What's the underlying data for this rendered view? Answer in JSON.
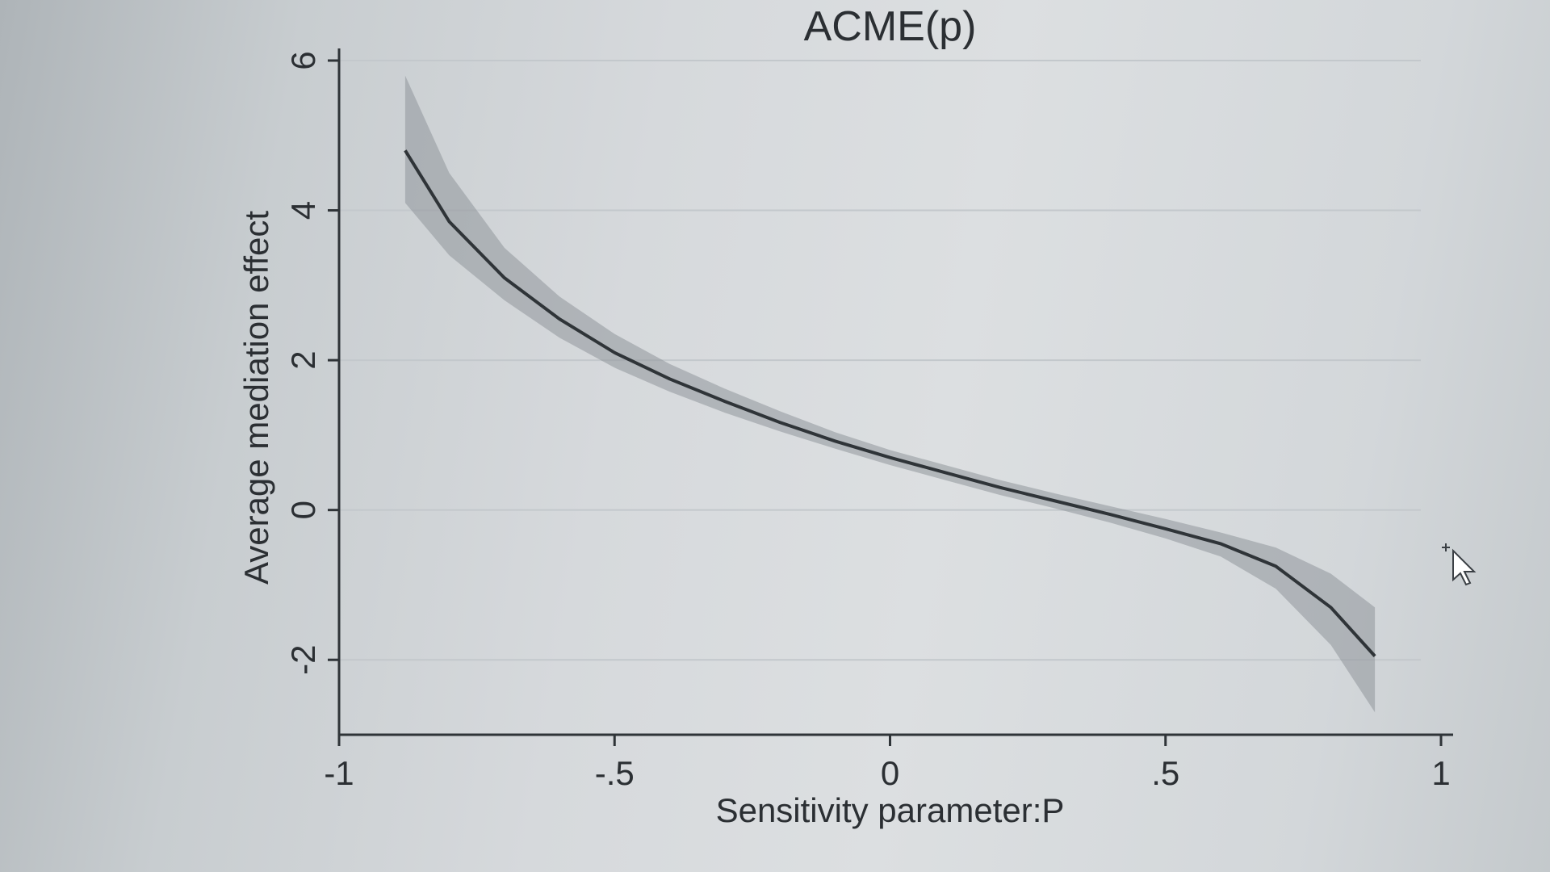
{
  "colors": {
    "line": "#2f3438",
    "ci_band": "#8f969b",
    "axis": "#2f3438",
    "grid": "#c3c8cc"
  },
  "chart_data": {
    "type": "area",
    "title": "ACME(p)",
    "xlabel": "Sensitivity parameter:P",
    "ylabel": "Average mediation effect",
    "xlim": [
      -1,
      1
    ],
    "ylim": [
      -3,
      6
    ],
    "xticks": [
      -1,
      -0.5,
      0,
      0.5,
      1
    ],
    "xtick_labels": [
      "-1",
      "-.5",
      "0",
      ".5",
      "1"
    ],
    "yticks": [
      -2,
      0,
      2,
      4,
      6
    ],
    "ytick_labels": [
      "-2",
      "0",
      "2",
      "4",
      "6"
    ],
    "grid": true,
    "series": [
      {
        "x": [
          -0.88,
          -0.8,
          -0.7,
          -0.6,
          -0.5,
          -0.4,
          -0.3,
          -0.2,
          -0.1,
          0,
          0.1,
          0.2,
          0.3,
          0.4,
          0.5,
          0.6,
          0.7,
          0.8,
          0.88
        ],
        "y": [
          4.8,
          3.85,
          3.1,
          2.55,
          2.1,
          1.75,
          1.45,
          1.17,
          0.92,
          0.7,
          0.5,
          0.3,
          0.12,
          -0.06,
          -0.25,
          -0.45,
          -0.75,
          -1.3,
          -1.95
        ],
        "lower": [
          4.1,
          3.4,
          2.8,
          2.3,
          1.9,
          1.58,
          1.3,
          1.05,
          0.82,
          0.6,
          0.4,
          0.2,
          0.02,
          -0.17,
          -0.38,
          -0.62,
          -1.05,
          -1.8,
          -2.7
        ],
        "upper": [
          5.8,
          4.5,
          3.5,
          2.85,
          2.35,
          1.95,
          1.62,
          1.32,
          1.04,
          0.8,
          0.6,
          0.4,
          0.22,
          0.05,
          -0.12,
          -0.3,
          -0.5,
          -0.85,
          -1.3
        ]
      }
    ]
  }
}
